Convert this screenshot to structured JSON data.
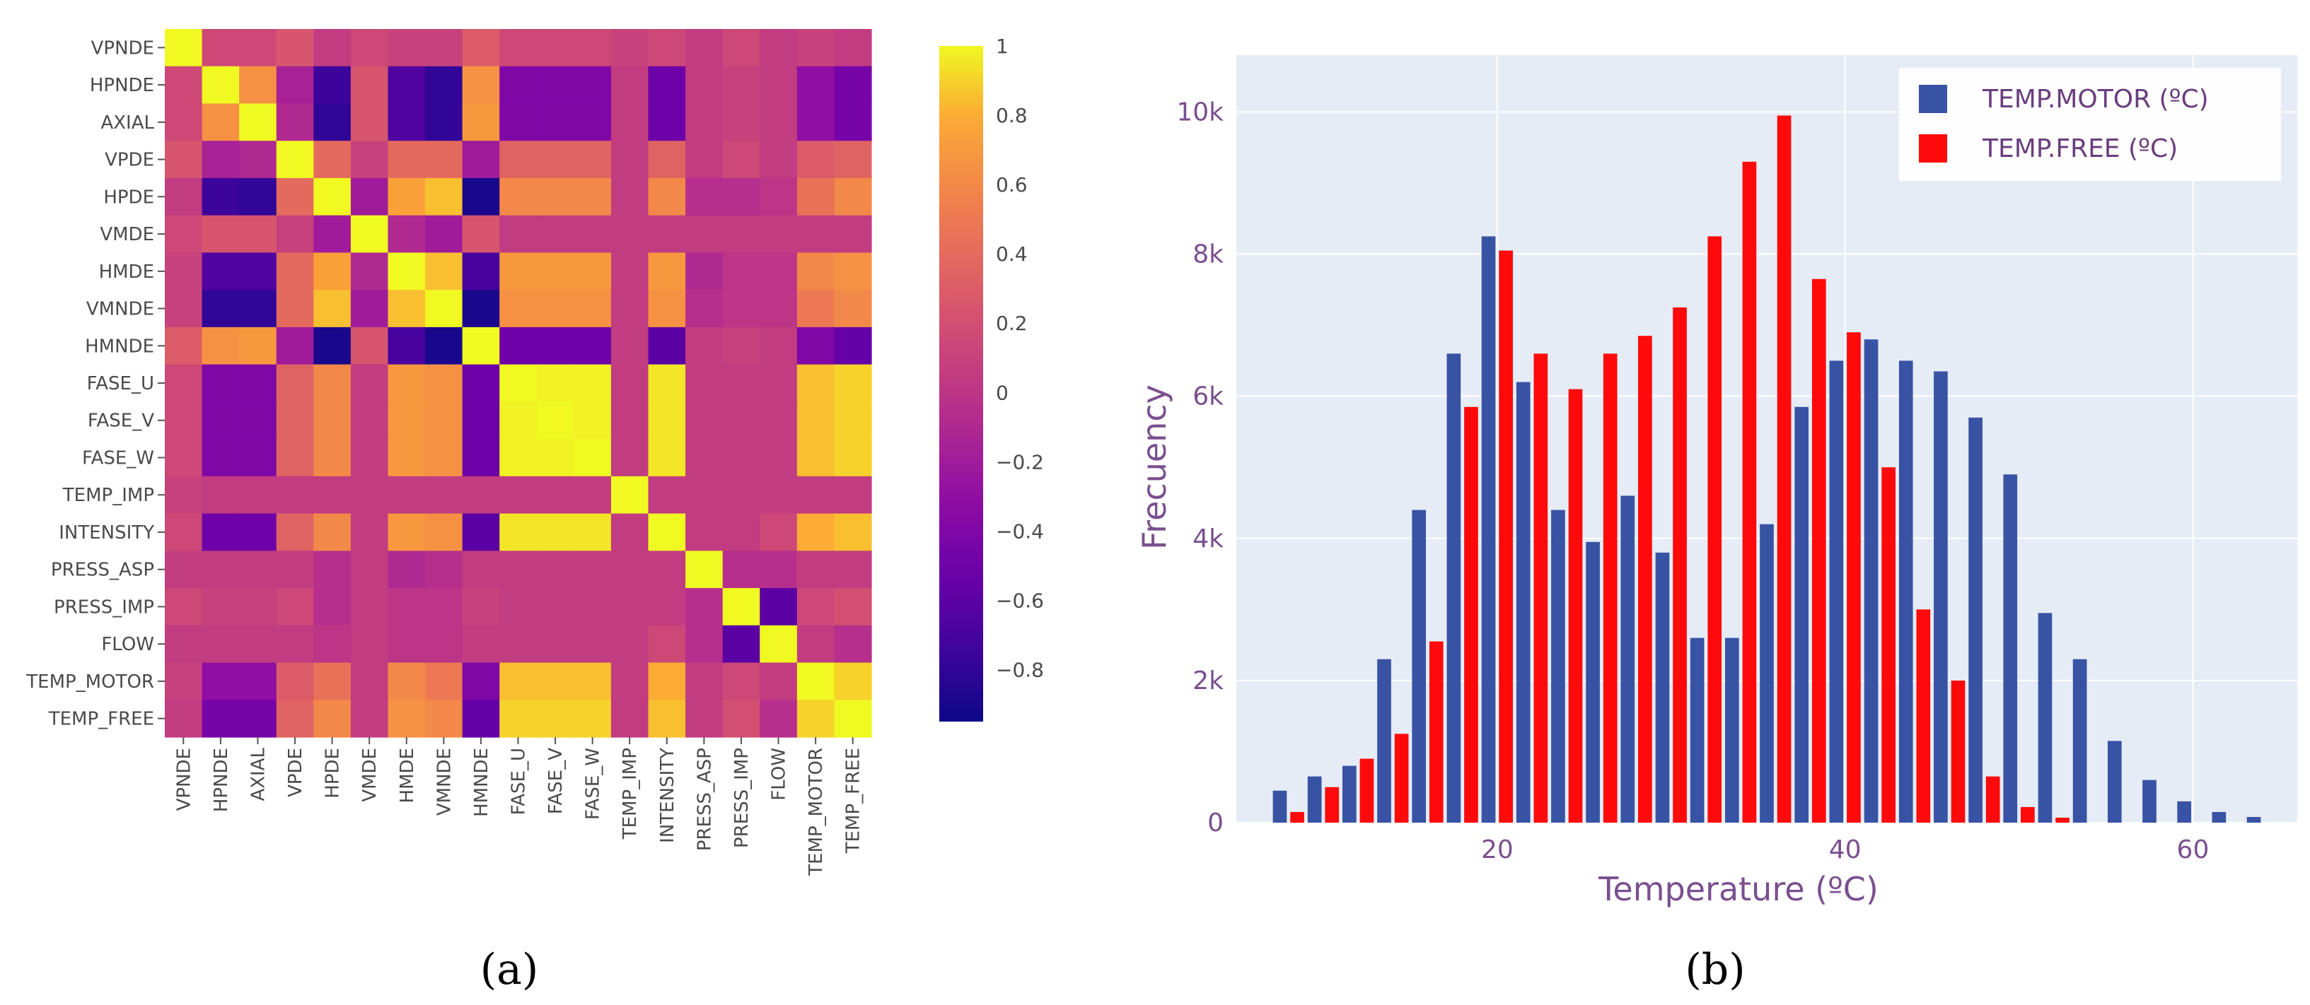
{
  "panels": {
    "a": {
      "caption": "(a)"
    },
    "b": {
      "caption": "(b)"
    }
  },
  "chart_data": [
    {
      "type": "heatmap",
      "title": "",
      "variables": [
        "VPNDE",
        "HPNDE",
        "AXIAL",
        "VPDE",
        "HPDE",
        "VMDE",
        "HMDE",
        "VMNDE",
        "HMNDE",
        "FASE_U",
        "FASE_V",
        "FASE_W",
        "TEMP_IMP",
        "INTENSITY",
        "PRESS_ASP",
        "PRESS_IMP",
        "FLOW",
        "TEMP_MOTOR",
        "TEMP_FREE"
      ],
      "matrix": [
        [
          1,
          0.15,
          0.15,
          0.25,
          0.05,
          0.15,
          0.1,
          0.1,
          0.3,
          0.15,
          0.15,
          0.15,
          0.1,
          0.15,
          0.05,
          0.15,
          0.05,
          0.1,
          0.05
        ],
        [
          0.15,
          1,
          0.65,
          -0.15,
          -0.75,
          0.25,
          -0.65,
          -0.8,
          0.65,
          -0.4,
          -0.4,
          -0.4,
          0.05,
          -0.5,
          0.05,
          0.1,
          0.05,
          -0.3,
          -0.45
        ],
        [
          0.15,
          0.65,
          1,
          -0.1,
          -0.8,
          0.25,
          -0.65,
          -0.8,
          0.7,
          -0.4,
          -0.4,
          -0.4,
          0.05,
          -0.5,
          0.05,
          0.1,
          0.05,
          -0.3,
          -0.45
        ],
        [
          0.25,
          -0.15,
          -0.1,
          1,
          0.4,
          0.1,
          0.4,
          0.4,
          -0.2,
          0.35,
          0.35,
          0.35,
          0.05,
          0.35,
          0.05,
          0.15,
          0.05,
          0.3,
          0.35
        ],
        [
          0.05,
          -0.75,
          -0.8,
          0.4,
          1,
          -0.2,
          0.75,
          0.85,
          -0.9,
          0.6,
          0.6,
          0.6,
          0.05,
          0.6,
          -0.05,
          -0.05,
          0.0,
          0.45,
          0.6
        ],
        [
          0.15,
          0.25,
          0.25,
          0.1,
          -0.2,
          1,
          -0.1,
          -0.2,
          0.25,
          0.05,
          0.05,
          0.05,
          0.05,
          0.05,
          0.05,
          0.05,
          0.05,
          0.05,
          0.05
        ],
        [
          0.1,
          -0.65,
          -0.65,
          0.4,
          0.75,
          -0.1,
          1,
          0.85,
          -0.7,
          0.7,
          0.7,
          0.7,
          0.05,
          0.7,
          -0.1,
          0.0,
          0.0,
          0.6,
          0.65
        ],
        [
          0.1,
          -0.8,
          -0.8,
          0.4,
          0.85,
          -0.2,
          0.85,
          1,
          -0.9,
          0.65,
          0.65,
          0.65,
          0.05,
          0.65,
          -0.05,
          0.0,
          0.0,
          0.5,
          0.6
        ],
        [
          0.3,
          0.65,
          0.7,
          -0.2,
          -0.9,
          0.25,
          -0.7,
          -0.9,
          1,
          -0.5,
          -0.5,
          -0.5,
          0.05,
          -0.6,
          0.05,
          0.1,
          0.05,
          -0.4,
          -0.55
        ],
        [
          0.15,
          -0.4,
          -0.4,
          0.35,
          0.6,
          0.05,
          0.7,
          0.65,
          -0.5,
          1,
          0.98,
          0.98,
          0.05,
          0.95,
          0.05,
          0.05,
          0.05,
          0.85,
          0.9
        ],
        [
          0.15,
          -0.4,
          -0.4,
          0.35,
          0.6,
          0.05,
          0.7,
          0.65,
          -0.5,
          0.98,
          1,
          0.98,
          0.05,
          0.95,
          0.05,
          0.05,
          0.05,
          0.85,
          0.9
        ],
        [
          0.15,
          -0.4,
          -0.4,
          0.35,
          0.6,
          0.05,
          0.7,
          0.65,
          -0.5,
          0.98,
          0.98,
          1,
          0.05,
          0.95,
          0.05,
          0.05,
          0.05,
          0.85,
          0.9
        ],
        [
          0.1,
          0.05,
          0.05,
          0.05,
          0.05,
          0.05,
          0.05,
          0.05,
          0.05,
          0.05,
          0.05,
          0.05,
          1,
          0.05,
          0.05,
          0.05,
          0.05,
          0.05,
          0.05
        ],
        [
          0.15,
          -0.5,
          -0.5,
          0.35,
          0.6,
          0.05,
          0.7,
          0.65,
          -0.6,
          0.95,
          0.95,
          0.95,
          0.05,
          1,
          0.05,
          0.05,
          0.15,
          0.8,
          0.85
        ],
        [
          0.05,
          0.05,
          0.05,
          0.05,
          -0.05,
          0.05,
          -0.1,
          -0.05,
          0.05,
          0.05,
          0.05,
          0.05,
          0.05,
          0.05,
          1,
          -0.05,
          -0.05,
          0.05,
          0.05
        ],
        [
          0.15,
          0.1,
          0.1,
          0.15,
          -0.05,
          0.05,
          0.0,
          0.0,
          0.1,
          0.05,
          0.05,
          0.05,
          0.05,
          0.05,
          -0.05,
          1,
          -0.6,
          0.15,
          0.2
        ],
        [
          0.05,
          0.05,
          0.05,
          0.05,
          0.0,
          0.05,
          0.0,
          0.0,
          0.05,
          0.05,
          0.05,
          0.05,
          0.05,
          0.15,
          -0.05,
          -0.6,
          1,
          0.05,
          -0.05
        ],
        [
          0.1,
          -0.3,
          -0.3,
          0.3,
          0.45,
          0.05,
          0.6,
          0.5,
          -0.4,
          0.85,
          0.85,
          0.85,
          0.05,
          0.8,
          0.05,
          0.15,
          0.05,
          1,
          0.9
        ],
        [
          0.05,
          -0.45,
          -0.45,
          0.35,
          0.6,
          0.05,
          0.65,
          0.6,
          -0.55,
          0.9,
          0.9,
          0.9,
          0.05,
          0.85,
          0.05,
          0.2,
          -0.05,
          0.9,
          1
        ]
      ],
      "colorbar_range": [
        -0.95,
        1
      ],
      "colorbar_ticks": [
        "1",
        "0.8",
        "0.6",
        "0.4",
        "0.2",
        "0",
        "−0.2",
        "−0.4",
        "−0.6",
        "−0.8"
      ],
      "colorbar_tick_values": [
        1,
        0.8,
        0.6,
        0.4,
        0.2,
        0,
        -0.2,
        -0.4,
        -0.6,
        -0.8
      ],
      "colormap": "plasma"
    },
    {
      "type": "bar",
      "title": "",
      "xlabel": "Temperature (ºC)",
      "ylabel": "Frecuency",
      "xlim": [
        5,
        66
      ],
      "ylim": [
        0,
        10800
      ],
      "x_ticks": [
        20,
        40,
        60
      ],
      "x_tick_labels": [
        "20",
        "40",
        "60"
      ],
      "y_ticks": [
        0,
        2000,
        4000,
        6000,
        8000,
        10000
      ],
      "y_tick_labels": [
        "0",
        "2k",
        "4k",
        "6k",
        "8k",
        "10k"
      ],
      "grid": true,
      "legend_position": "top-right",
      "bin_width": 2,
      "series": [
        {
          "name": "TEMP.MOTOR (ºC)",
          "color": "#3853a4",
          "bins": [
            8,
            10,
            12,
            14,
            16,
            18,
            20,
            22,
            24,
            26,
            28,
            30,
            32,
            34,
            36,
            38,
            40,
            42,
            44,
            46,
            48,
            50,
            52,
            54,
            56,
            58,
            60,
            62,
            64
          ],
          "values": [
            450,
            650,
            800,
            2300,
            4400,
            6600,
            8250,
            6200,
            4400,
            3950,
            4600,
            3800,
            2600,
            2600,
            4200,
            5850,
            6500,
            6800,
            6500,
            6350,
            5700,
            4900,
            2950,
            2300,
            1150,
            600,
            300,
            150,
            80
          ]
        },
        {
          "name": "TEMP.FREE (ºC)",
          "color": "#ff0a0a",
          "bins": [
            8,
            10,
            12,
            14,
            16,
            18,
            20,
            22,
            24,
            26,
            28,
            30,
            32,
            34,
            36,
            38,
            40,
            42,
            44,
            46,
            48,
            50,
            52,
            54
          ],
          "values": [
            150,
            500,
            900,
            1250,
            2550,
            5850,
            8050,
            6600,
            6100,
            6600,
            6850,
            7250,
            8250,
            9300,
            9950,
            7650,
            6900,
            5000,
            3000,
            2000,
            650,
            220,
            70,
            0
          ]
        }
      ]
    }
  ]
}
